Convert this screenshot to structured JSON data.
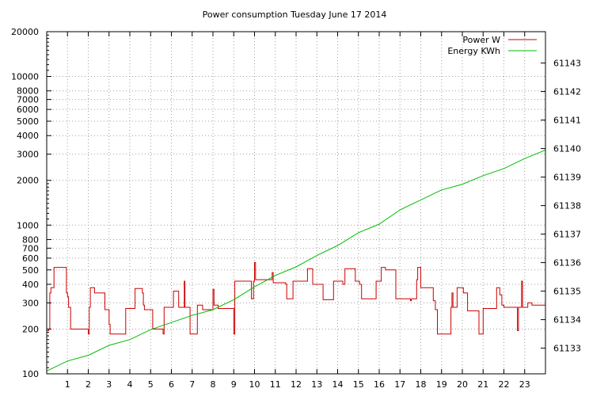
{
  "chart_data": {
    "type": "line",
    "title": "Power consumption Tuesday June 17 2014",
    "xlabel": "",
    "ylabel": "",
    "y2label": "",
    "xlim": [
      0,
      24
    ],
    "x_ticks": [
      1,
      2,
      3,
      4,
      5,
      6,
      7,
      8,
      9,
      10,
      11,
      12,
      13,
      14,
      15,
      16,
      17,
      18,
      19,
      20,
      21,
      22,
      23
    ],
    "y_scale": "log",
    "ylim": [
      100,
      20000
    ],
    "y_ticks": [
      100,
      200,
      300,
      400,
      500,
      600,
      700,
      800,
      1000,
      2000,
      3000,
      4000,
      5000,
      6000,
      7000,
      8000,
      10000,
      20000
    ],
    "y2lim": [
      61132.1,
      61144.1
    ],
    "y2_ticks": [
      61133,
      61134,
      61135,
      61136,
      61137,
      61138,
      61139,
      61140,
      61141,
      61142,
      61143
    ],
    "grid": true,
    "legend_position": "top-right",
    "series": [
      {
        "name": "Power W",
        "color": "#cc0000",
        "axis": "left",
        "step": true,
        "points": [
          [
            0.0,
            195
          ],
          [
            0.1,
            200
          ],
          [
            0.15,
            350
          ],
          [
            0.2,
            380
          ],
          [
            0.35,
            520
          ],
          [
            0.9,
            520
          ],
          [
            0.95,
            350
          ],
          [
            1.0,
            330
          ],
          [
            1.05,
            280
          ],
          [
            1.15,
            200
          ],
          [
            1.95,
            200
          ],
          [
            2.0,
            185
          ],
          [
            2.05,
            280
          ],
          [
            2.1,
            380
          ],
          [
            2.3,
            350
          ],
          [
            2.75,
            350
          ],
          [
            2.8,
            270
          ],
          [
            2.95,
            270
          ],
          [
            3.0,
            215
          ],
          [
            3.05,
            185
          ],
          [
            3.7,
            185
          ],
          [
            3.8,
            275
          ],
          [
            4.2,
            275
          ],
          [
            4.25,
            375
          ],
          [
            4.55,
            375
          ],
          [
            4.6,
            350
          ],
          [
            4.65,
            290
          ],
          [
            4.7,
            270
          ],
          [
            5.05,
            270
          ],
          [
            5.1,
            200
          ],
          [
            5.55,
            200
          ],
          [
            5.6,
            185
          ],
          [
            5.65,
            280
          ],
          [
            6.0,
            280
          ],
          [
            6.1,
            360
          ],
          [
            6.3,
            360
          ],
          [
            6.35,
            280
          ],
          [
            6.6,
            280
          ],
          [
            6.62,
            420
          ],
          [
            6.65,
            280
          ],
          [
            6.85,
            280
          ],
          [
            6.9,
            185
          ],
          [
            7.2,
            185
          ],
          [
            7.25,
            290
          ],
          [
            7.45,
            290
          ],
          [
            7.5,
            270
          ],
          [
            7.95,
            270
          ],
          [
            8.0,
            370
          ],
          [
            8.05,
            290
          ],
          [
            8.2,
            290
          ],
          [
            8.25,
            275
          ],
          [
            8.95,
            275
          ],
          [
            9.0,
            185
          ],
          [
            9.05,
            420
          ],
          [
            9.8,
            420
          ],
          [
            9.85,
            320
          ],
          [
            9.95,
            420
          ],
          [
            10.0,
            560
          ],
          [
            10.05,
            430
          ],
          [
            10.8,
            430
          ],
          [
            10.85,
            480
          ],
          [
            10.9,
            410
          ],
          [
            11.5,
            400
          ],
          [
            11.55,
            320
          ],
          [
            11.8,
            320
          ],
          [
            11.85,
            420
          ],
          [
            12.5,
            420
          ],
          [
            12.55,
            510
          ],
          [
            12.75,
            510
          ],
          [
            12.8,
            400
          ],
          [
            13.25,
            400
          ],
          [
            13.3,
            315
          ],
          [
            13.75,
            315
          ],
          [
            13.8,
            420
          ],
          [
            14.2,
            420
          ],
          [
            14.25,
            400
          ],
          [
            14.35,
            510
          ],
          [
            14.8,
            510
          ],
          [
            14.85,
            420
          ],
          [
            15.0,
            420
          ],
          [
            15.05,
            400
          ],
          [
            15.15,
            320
          ],
          [
            15.8,
            320
          ],
          [
            15.85,
            420
          ],
          [
            16.05,
            420
          ],
          [
            16.1,
            520
          ],
          [
            16.3,
            500
          ],
          [
            16.75,
            500
          ],
          [
            16.8,
            320
          ],
          [
            17.45,
            320
          ],
          [
            17.5,
            310
          ],
          [
            17.55,
            320
          ],
          [
            17.75,
            320
          ],
          [
            17.8,
            430
          ],
          [
            17.85,
            520
          ],
          [
            17.95,
            520
          ],
          [
            18.0,
            380
          ],
          [
            18.55,
            380
          ],
          [
            18.6,
            310
          ],
          [
            18.7,
            270
          ],
          [
            18.8,
            185
          ],
          [
            19.4,
            185
          ],
          [
            19.45,
            280
          ],
          [
            19.5,
            350
          ],
          [
            19.55,
            280
          ],
          [
            19.7,
            280
          ],
          [
            19.75,
            380
          ],
          [
            20.0,
            380
          ],
          [
            20.05,
            350
          ],
          [
            20.2,
            350
          ],
          [
            20.25,
            265
          ],
          [
            20.75,
            265
          ],
          [
            20.8,
            185
          ],
          [
            20.95,
            185
          ],
          [
            21.0,
            275
          ],
          [
            21.6,
            275
          ],
          [
            21.65,
            380
          ],
          [
            21.75,
            380
          ],
          [
            21.8,
            340
          ],
          [
            21.9,
            290
          ],
          [
            22.0,
            280
          ],
          [
            22.6,
            280
          ],
          [
            22.65,
            195
          ],
          [
            22.7,
            280
          ],
          [
            22.8,
            280
          ],
          [
            22.85,
            420
          ],
          [
            22.9,
            280
          ],
          [
            23.1,
            280
          ],
          [
            23.15,
            300
          ],
          [
            23.3,
            300
          ],
          [
            23.35,
            290
          ],
          [
            24.0,
            290
          ]
        ]
      },
      {
        "name": "Energy KWh",
        "color": "#00bb00",
        "axis": "right",
        "step": false,
        "points": [
          [
            0.0,
            61132.2
          ],
          [
            1.0,
            61132.55
          ],
          [
            2.0,
            61132.75
          ],
          [
            3.0,
            61133.1
          ],
          [
            4.0,
            61133.3
          ],
          [
            5.0,
            61133.65
          ],
          [
            6.0,
            61133.9
          ],
          [
            7.0,
            61134.15
          ],
          [
            8.0,
            61134.35
          ],
          [
            9.0,
            61134.7
          ],
          [
            10.0,
            61135.15
          ],
          [
            11.0,
            61135.55
          ],
          [
            12.0,
            61135.85
          ],
          [
            13.0,
            61136.25
          ],
          [
            14.0,
            61136.6
          ],
          [
            15.0,
            61137.05
          ],
          [
            16.0,
            61137.35
          ],
          [
            17.0,
            61137.85
          ],
          [
            18.0,
            61138.2
          ],
          [
            19.0,
            61138.55
          ],
          [
            20.0,
            61138.75
          ],
          [
            21.0,
            61139.05
          ],
          [
            22.0,
            61139.3
          ],
          [
            23.0,
            61139.65
          ],
          [
            24.0,
            61139.95
          ]
        ]
      }
    ]
  }
}
